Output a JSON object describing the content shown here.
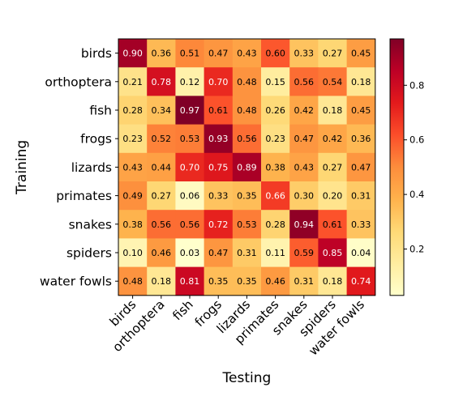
{
  "chart_data": {
    "type": "heatmap",
    "title": "",
    "xlabel": "Testing",
    "ylabel": "Training",
    "rows": [
      "birds",
      "orthoptera",
      "fish",
      "frogs",
      "lizards",
      "primates",
      "snakes",
      "spiders",
      "water fowls"
    ],
    "columns": [
      "birds",
      "orthoptera",
      "fish",
      "frogs",
      "lizards",
      "primates",
      "snakes",
      "spiders",
      "water fowls"
    ],
    "values": [
      [
        0.9,
        0.36,
        0.51,
        0.47,
        0.43,
        0.6,
        0.33,
        0.27,
        0.45
      ],
      [
        0.21,
        0.78,
        0.12,
        0.7,
        0.48,
        0.15,
        0.56,
        0.54,
        0.18
      ],
      [
        0.28,
        0.34,
        0.97,
        0.61,
        0.48,
        0.26,
        0.42,
        0.18,
        0.45
      ],
      [
        0.23,
        0.52,
        0.53,
        0.93,
        0.56,
        0.23,
        0.47,
        0.42,
        0.36
      ],
      [
        0.43,
        0.44,
        0.7,
        0.75,
        0.89,
        0.38,
        0.43,
        0.27,
        0.47
      ],
      [
        0.49,
        0.27,
        0.06,
        0.33,
        0.35,
        0.66,
        0.3,
        0.2,
        0.31
      ],
      [
        0.38,
        0.56,
        0.56,
        0.72,
        0.53,
        0.28,
        0.94,
        0.61,
        0.33
      ],
      [
        0.1,
        0.46,
        0.03,
        0.47,
        0.31,
        0.11,
        0.59,
        0.85,
        0.04
      ],
      [
        0.48,
        0.18,
        0.81,
        0.35,
        0.35,
        0.46,
        0.31,
        0.18,
        0.74
      ]
    ],
    "value_labels": [
      [
        "0.90",
        "0.36",
        "0.51",
        "0.47",
        "0.43",
        "0.60",
        "0.33",
        "0.27",
        "0.45"
      ],
      [
        "0.21",
        "0.78",
        "0.12",
        "0.70",
        "0.48",
        "0.15",
        "0.56",
        "0.54",
        "0.18"
      ],
      [
        "0.28",
        "0.34",
        "0.97",
        "0.61",
        "0.48",
        "0.26",
        "0.42",
        "0.18",
        "0.45"
      ],
      [
        "0.23",
        "0.52",
        "0.53",
        "0.93",
        "0.56",
        "0.23",
        "0.47",
        "0.42",
        "0.36"
      ],
      [
        "0.43",
        "0.44",
        "0.70",
        "0.75",
        "0.89",
        "0.38",
        "0.43",
        "0.27",
        "0.47"
      ],
      [
        "0.49",
        "0.27",
        "0.06",
        "0.33",
        "0.35",
        "0.66",
        "0.30",
        "0.20",
        "0.31"
      ],
      [
        "0.38",
        "0.56",
        "0.56",
        "0.72",
        "0.53",
        "0.28",
        "0.94",
        "0.61",
        "0.33"
      ],
      [
        "0.10",
        "0.46",
        "0.03",
        "0.47",
        "0.31",
        "0.11",
        "0.59",
        "0.85",
        "0.04"
      ],
      [
        "0.48",
        "0.18",
        "0.81",
        "0.35",
        "0.35",
        "0.46",
        "0.31",
        "0.18",
        "0.74"
      ]
    ],
    "colormap": "YlOrRd",
    "colormap_stops": [
      "#ffffcc",
      "#ffeda0",
      "#fed976",
      "#feb24c",
      "#fd8d3c",
      "#fc4e2a",
      "#e31a1c",
      "#bd0026",
      "#800026"
    ],
    "color_range": [
      0.03,
      0.97
    ],
    "colorbar": {
      "ticks": [
        0.2,
        0.4,
        0.6,
        0.8
      ],
      "tick_labels": [
        "0.2",
        "0.4",
        "0.6",
        "0.8"
      ]
    },
    "grid": false
  }
}
